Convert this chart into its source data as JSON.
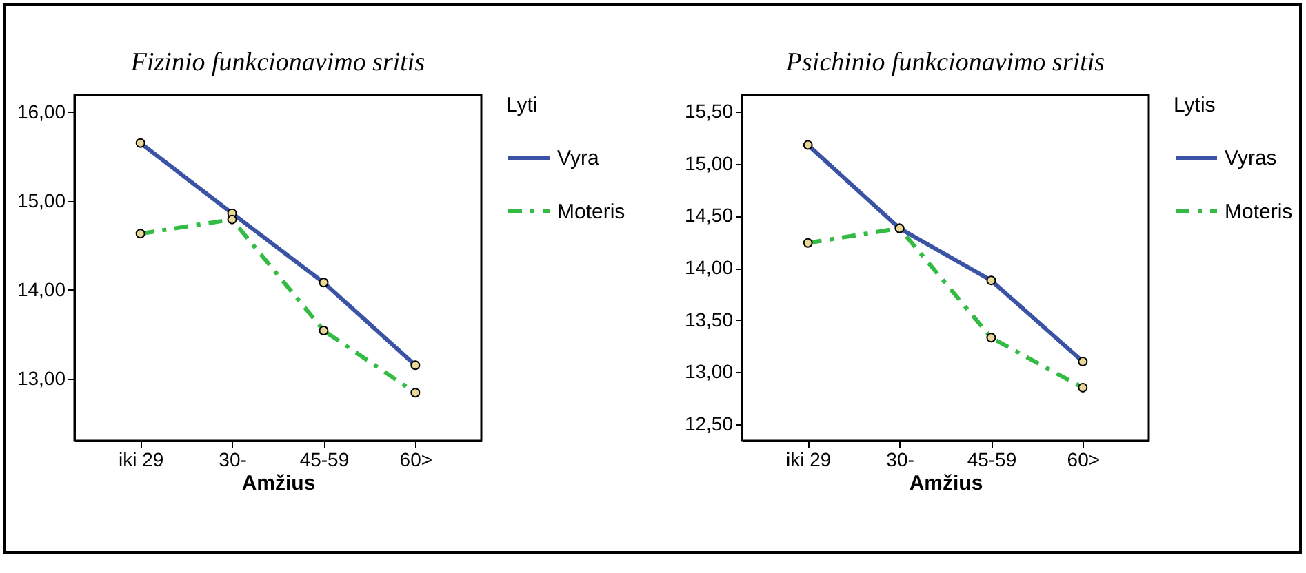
{
  "chart_data": [
    {
      "type": "line",
      "title": "Fizinio funkcionavimo sritis",
      "xlabel": "Amžius",
      "legend_title": "Lyti",
      "legend": "top right",
      "marker": "circle",
      "categories": [
        "iki 29",
        "30-",
        "45-59",
        "60>"
      ],
      "ylim": [
        12.3,
        16.19
      ],
      "yticks": [
        {
          "value": 13,
          "label": "13,00"
        },
        {
          "value": 14,
          "label": "14,00"
        },
        {
          "value": 15,
          "label": "15,00"
        },
        {
          "value": 16,
          "label": "16,00"
        }
      ],
      "series": [
        {
          "name": "Vyra",
          "color": "#3a53a4",
          "line_style": "solid",
          "values": [
            15.65,
            14.86,
            14.08,
            13.15
          ]
        },
        {
          "name": "Moteris",
          "color": "#33bb44",
          "line_style": "dashdot",
          "values": [
            14.63,
            14.79,
            13.54,
            12.84
          ]
        }
      ]
    },
    {
      "type": "line",
      "title": "Psichinio funkcionavimo sritis",
      "xlabel": "Amžius",
      "legend_title": "Lytis",
      "legend": "top right",
      "marker": "circle",
      "categories": [
        "iki 29",
        "30-",
        "45-59",
        "60>"
      ],
      "ylim": [
        12.34,
        15.66
      ],
      "yticks": [
        {
          "value": 12.5,
          "label": "12,50"
        },
        {
          "value": 13,
          "label": "13,00"
        },
        {
          "value": 13.5,
          "label": "13,50"
        },
        {
          "value": 14,
          "label": "14,00"
        },
        {
          "value": 14.5,
          "label": "14,50"
        },
        {
          "value": 15,
          "label": "15,00"
        },
        {
          "value": 15.5,
          "label": "15,50"
        }
      ],
      "series": [
        {
          "name": "Vyras",
          "color": "#3a53a4",
          "line_style": "solid",
          "values": [
            15.18,
            14.38,
            13.88,
            13.1
          ]
        },
        {
          "name": "Moteris",
          "color": "#33bb44",
          "line_style": "dashdot",
          "values": [
            14.24,
            14.38,
            13.33,
            12.85
          ]
        }
      ]
    }
  ]
}
